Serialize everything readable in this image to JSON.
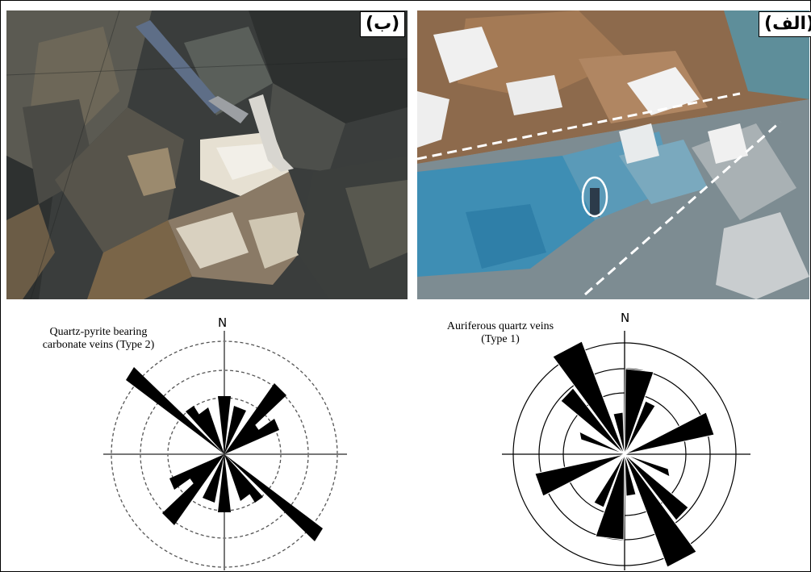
{
  "panels": {
    "left_photo_label": "(ب)",
    "right_photo_label": "(الف)"
  },
  "rose_left": {
    "north_label": "N",
    "caption_line1": "Quartz-pyrite bearing",
    "caption_line2": "carbonate veins (Type 2)"
  },
  "rose_right": {
    "north_label": "N",
    "caption_line1": "Auriferous quartz veins",
    "caption_line2": "(Type 1)"
  },
  "colors": {
    "rock_dark": "#3c3f3e",
    "rock_brown": "#8a6a45",
    "quartz_white": "#e8e4dc",
    "malachite_blue": "#3d8fb0",
    "snow": "#f4f4f4"
  }
}
